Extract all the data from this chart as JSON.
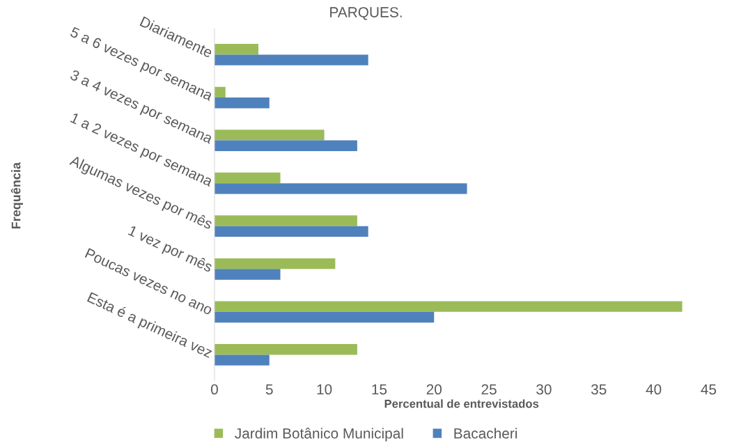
{
  "chart_data": {
    "type": "bar",
    "orientation": "horizontal",
    "title": "PARQUES.",
    "xlabel": "Percentual de entrevistados",
    "ylabel": "Frequência",
    "categories": [
      "Diariamente",
      "5 a 6 vezes por semana",
      "3 a 4 vezes por semana",
      "1 a 2 vezes por semana",
      "Algumas vezes por mês",
      "1 vez por mês",
      "Poucas vezes no ano",
      "Esta é a primeira vez"
    ],
    "series": [
      {
        "name": "Jardim Botânico Municipal",
        "color": "#9bbb59",
        "values": [
          4,
          1,
          10,
          6,
          13,
          11,
          42.6,
          13
        ]
      },
      {
        "name": "Bacacheri",
        "color": "#4f81bd",
        "values": [
          14,
          5,
          13,
          23,
          14,
          6,
          20,
          5
        ]
      }
    ],
    "xlim": [
      0,
      45
    ],
    "xticks": [
      0,
      5,
      10,
      15,
      20,
      25,
      30,
      35,
      40,
      45
    ],
    "grid": false,
    "legend": "bottom"
  }
}
